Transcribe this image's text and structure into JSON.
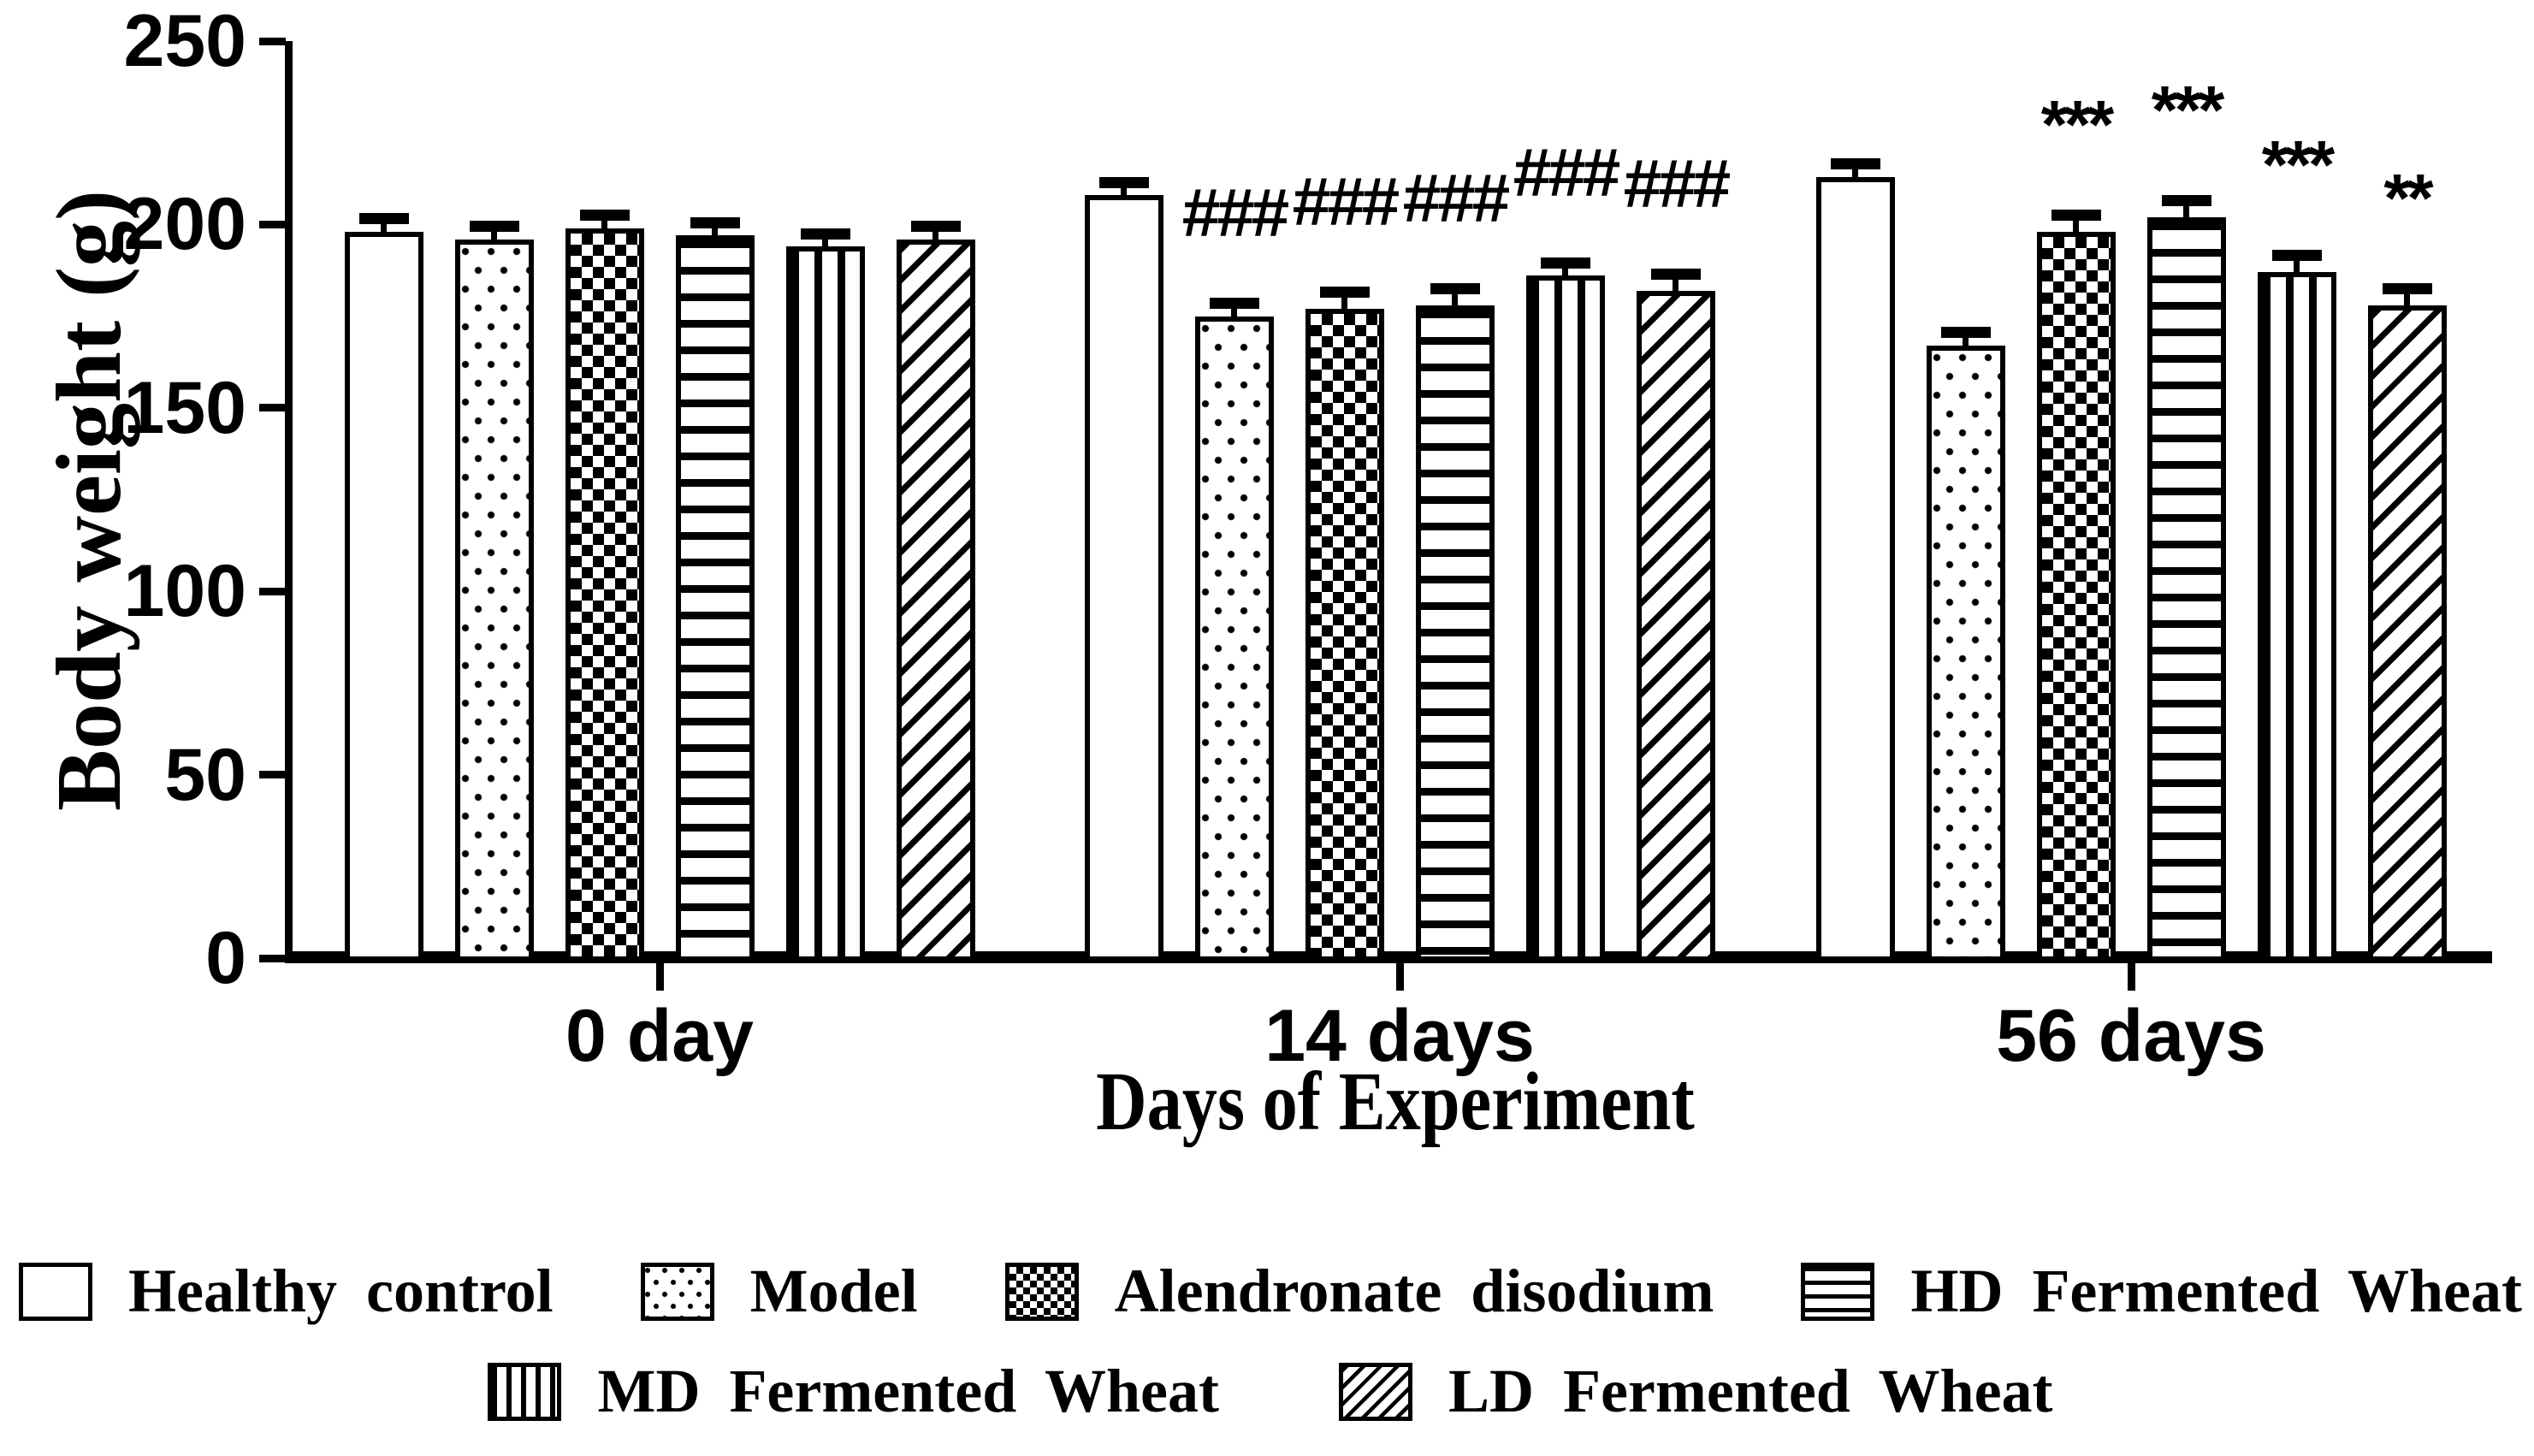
{
  "chart_data": {
    "type": "bar",
    "title": "",
    "xlabel": "Days of Experiment",
    "ylabel": "Body weight (g)",
    "ylim": [
      0,
      250
    ],
    "yticks": [
      0,
      50,
      100,
      150,
      200,
      250
    ],
    "grid": false,
    "legend_position": "bottom",
    "categories": [
      "0 day",
      "14 days",
      "56 days"
    ],
    "series": [
      {
        "name": "Healthy control",
        "pattern": "plain",
        "values": [
          198,
          208,
          213
        ],
        "errors": [
          2,
          2,
          2
        ],
        "annotations": [
          "",
          "",
          ""
        ]
      },
      {
        "name": "Model",
        "pattern": "dots",
        "values": [
          196,
          175,
          167
        ],
        "errors": [
          2,
          2,
          2
        ],
        "annotations": [
          "",
          "###",
          ""
        ]
      },
      {
        "name": "Alendronate disodium",
        "pattern": "checker",
        "values": [
          199,
          177,
          198
        ],
        "errors": [
          2,
          3,
          3
        ],
        "annotations": [
          "",
          "###",
          "***"
        ]
      },
      {
        "name": "HD Fermented Wheat",
        "pattern": "hlines",
        "values": [
          197,
          178,
          202
        ],
        "errors": [
          2,
          3,
          3
        ],
        "annotations": [
          "",
          "###",
          "***"
        ]
      },
      {
        "name": "MD Fermented Wheat",
        "pattern": "vlines",
        "values": [
          194,
          186,
          187
        ],
        "errors": [
          2,
          2,
          3
        ],
        "annotations": [
          "",
          "###",
          "***"
        ]
      },
      {
        "name": "LD Fermented Wheat",
        "pattern": "diag",
        "values": [
          196,
          182,
          178
        ],
        "errors": [
          2,
          3,
          3
        ],
        "annotations": [
          "",
          "###",
          "**"
        ]
      }
    ],
    "legend_rows": [
      [
        "Healthy control",
        "Model",
        "Alendronate disodium",
        "HD Fermented Wheat"
      ],
      [
        "MD Fermented Wheat",
        "LD Fermented Wheat"
      ]
    ]
  },
  "colors": {
    "ink": "#000000",
    "background": "#ffffff"
  }
}
